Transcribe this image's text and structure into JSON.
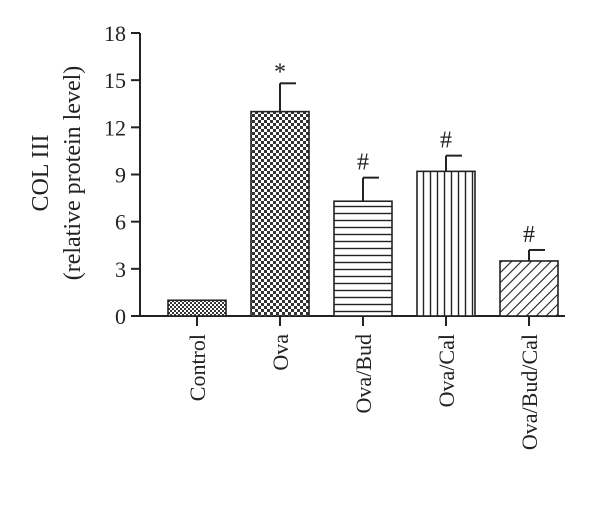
{
  "chart_data": {
    "type": "bar",
    "categories": [
      "Control",
      "Ova",
      "Ova/Bud",
      "Ova/Cal",
      "Ova/Bud/Cal"
    ],
    "values": [
      1.0,
      13.0,
      7.3,
      9.2,
      3.5
    ],
    "errors": [
      0.0,
      1.8,
      1.5,
      1.0,
      0.7
    ],
    "annotations": [
      "",
      "*",
      "#",
      "#",
      "#"
    ],
    "patterns": [
      "fine-checker",
      "checker",
      "horizontal-lines",
      "vertical-lines",
      "diagonal-lines"
    ],
    "ylabel_line1": "COL III",
    "ylabel_line2": "(relative protein level)",
    "xlabel": "",
    "ylim": [
      0,
      18
    ],
    "yticks": [
      0,
      3,
      6,
      9,
      12,
      15,
      18
    ],
    "grid": false,
    "legend": "none",
    "colors": {
      "bar_stroke": "#222222",
      "bar_fill": "#ffffff",
      "axis": "#222222"
    }
  }
}
